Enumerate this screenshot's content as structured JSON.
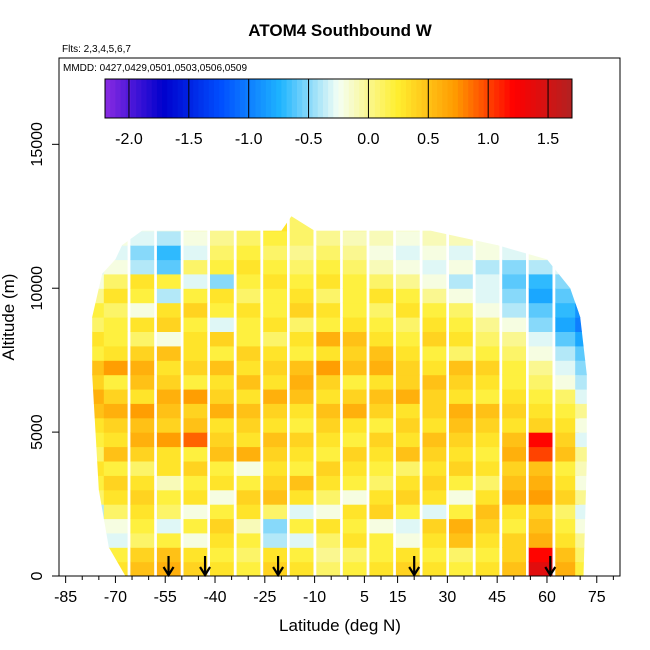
{
  "chart_data": {
    "type": "heatmap",
    "title": "ATOM4 Southbound W",
    "flights_note": "Flts: 2,3,4,5,6,7",
    "dates_note": "MMDD: 0427,0429,0501,0503,0506,0509",
    "xlabel": "Latitude (deg N)",
    "ylabel": "Altitude (m)",
    "xlim": [
      -87,
      82
    ],
    "ylim": [
      0,
      18000
    ],
    "x_ticks": [
      -85,
      -70,
      -55,
      -40,
      -25,
      -10,
      5,
      15,
      30,
      45,
      60,
      75
    ],
    "y_ticks": [
      0,
      5000,
      10000,
      15000
    ],
    "colorbar": {
      "range": [
        -2.2,
        1.7
      ],
      "ticks": [
        -2.0,
        -1.5,
        -1.0,
        -0.5,
        0.0,
        0.5,
        1.0,
        1.5
      ],
      "tick_labels": [
        "-2.0",
        "-1.5",
        "-1.0",
        "-0.5",
        "0.0",
        "0.5",
        "1.0",
        "1.5"
      ],
      "colors": [
        "#8a2be2",
        "#0000cd",
        "#0050ff",
        "#1eb4ff",
        "#f5fff5",
        "#ffef30",
        "#ff9a00",
        "#ff0000",
        "#b22222"
      ]
    },
    "profile_latitudes": [
      -54,
      -43,
      -21,
      20,
      61
    ],
    "envelope": {
      "lat": [
        -67,
        -72,
        -75,
        -76,
        -77,
        -77,
        -74,
        -70,
        -68,
        -62,
        -55,
        -35,
        -20,
        -17,
        -10,
        0,
        25,
        45,
        60,
        67,
        70,
        72,
        72,
        71
      ],
      "alt": [
        0,
        1000,
        3000,
        5000,
        7000,
        9000,
        10500,
        11000,
        11500,
        12000,
        12000,
        12000,
        12000,
        12500,
        12000,
        12000,
        12000,
        11500,
        11000,
        10000,
        9000,
        7000,
        4000,
        0
      ]
    },
    "w_field": {
      "lat": [
        -77,
        -70,
        -62,
        -54,
        -46,
        -38,
        -30,
        -22,
        -14,
        -6,
        2,
        10,
        18,
        26,
        34,
        42,
        50,
        58,
        66,
        72
      ],
      "alt": [
        250,
        750,
        1250,
        1750,
        2250,
        2750,
        3250,
        3750,
        4250,
        4750,
        5250,
        5750,
        6250,
        6750,
        7250,
        7750,
        8250,
        8750,
        9250,
        9750,
        10250,
        10750,
        11250,
        11750,
        12250
      ],
      "values": [
        [
          0.2,
          0.3,
          0.5,
          0.6,
          0.4,
          0.3,
          0.2,
          0.4,
          0.3,
          0.1,
          0.2,
          0.3,
          0.4,
          0.3,
          0.2,
          0.3,
          0.5,
          1.4,
          0.6,
          0.2
        ],
        [
          0.1,
          0.2,
          0.4,
          0.5,
          0.3,
          0.2,
          0.1,
          0.3,
          0.2,
          0.0,
          0.1,
          0.2,
          0.3,
          0.2,
          0.1,
          0.2,
          0.4,
          1.2,
          0.5,
          0.1
        ],
        [
          -0.2,
          -0.3,
          0.1,
          0.2,
          -0.2,
          0.3,
          0.2,
          -0.4,
          -0.3,
          0.1,
          0.3,
          0.2,
          -0.2,
          0.3,
          0.5,
          0.3,
          0.4,
          0.6,
          0.3,
          0.0
        ],
        [
          -0.3,
          -0.2,
          0.2,
          -0.3,
          0.2,
          0.4,
          -0.1,
          -0.5,
          0.2,
          0.3,
          0.2,
          -0.2,
          -0.3,
          0.4,
          0.6,
          0.4,
          0.2,
          0.5,
          0.2,
          -0.2
        ],
        [
          -0.4,
          0.1,
          0.3,
          0.1,
          -0.2,
          0.2,
          0.3,
          0.1,
          -0.3,
          -0.2,
          0.3,
          0.4,
          0.2,
          -0.3,
          0.2,
          0.5,
          0.3,
          0.4,
          0.1,
          -0.3
        ],
        [
          0.1,
          0.3,
          0.4,
          0.2,
          0.3,
          -0.2,
          0.4,
          0.5,
          0.3,
          0.1,
          -0.2,
          0.3,
          0.4,
          0.3,
          -0.2,
          0.3,
          0.6,
          0.7,
          0.4,
          0.0
        ],
        [
          0.2,
          0.4,
          0.3,
          -0.1,
          0.2,
          0.3,
          0.2,
          0.4,
          0.5,
          0.3,
          0.2,
          0.1,
          0.3,
          0.4,
          0.2,
          0.1,
          0.5,
          0.6,
          0.3,
          -0.2
        ],
        [
          0.3,
          0.2,
          0.1,
          0.3,
          0.4,
          0.2,
          -0.2,
          0.3,
          0.2,
          0.4,
          0.3,
          0.2,
          0.1,
          0.3,
          0.4,
          0.3,
          0.4,
          0.5,
          0.2,
          -0.1
        ],
        [
          0.1,
          0.5,
          0.4,
          0.3,
          0.2,
          0.5,
          0.6,
          0.4,
          0.3,
          0.2,
          0.4,
          0.3,
          0.5,
          0.4,
          0.3,
          0.2,
          0.6,
          1.0,
          0.5,
          0.0
        ],
        [
          0.2,
          0.3,
          0.6,
          0.7,
          0.9,
          0.4,
          0.3,
          0.5,
          0.4,
          0.3,
          0.2,
          0.4,
          0.3,
          0.5,
          0.4,
          0.3,
          0.5,
          1.2,
          0.4,
          -0.3
        ],
        [
          0.3,
          0.4,
          0.5,
          0.4,
          0.5,
          0.3,
          0.4,
          0.3,
          0.2,
          0.4,
          0.3,
          0.2,
          0.4,
          0.3,
          0.5,
          0.4,
          0.3,
          0.4,
          0.3,
          -0.2
        ],
        [
          0.5,
          0.6,
          0.7,
          0.5,
          0.4,
          0.6,
          0.5,
          0.4,
          0.3,
          0.5,
          0.6,
          0.4,
          0.3,
          0.4,
          0.6,
          0.5,
          0.4,
          0.3,
          0.2,
          0.0
        ],
        [
          0.6,
          0.4,
          0.3,
          0.6,
          0.7,
          0.4,
          0.3,
          0.6,
          0.5,
          0.3,
          0.4,
          0.5,
          0.6,
          0.4,
          0.3,
          0.2,
          0.3,
          0.2,
          0.1,
          -0.3
        ],
        [
          0.4,
          0.2,
          0.5,
          0.4,
          0.2,
          0.3,
          0.5,
          0.3,
          0.6,
          0.4,
          0.2,
          0.3,
          0.4,
          0.5,
          0.4,
          0.3,
          0.2,
          0.1,
          -0.2,
          -0.4
        ],
        [
          0.5,
          0.7,
          0.6,
          0.3,
          0.4,
          0.5,
          0.3,
          0.4,
          0.5,
          0.7,
          0.5,
          0.6,
          0.4,
          0.3,
          0.5,
          0.4,
          0.2,
          0.0,
          -0.3,
          -0.5
        ],
        [
          0.2,
          0.3,
          0.4,
          0.5,
          0.3,
          0.2,
          0.4,
          0.3,
          0.2,
          0.3,
          0.4,
          0.5,
          0.3,
          0.2,
          0.1,
          0.2,
          0.1,
          -0.2,
          -0.4,
          -0.6
        ],
        [
          0.3,
          0.2,
          0.1,
          -0.2,
          0.3,
          0.4,
          0.2,
          0.1,
          0.3,
          0.6,
          0.5,
          0.3,
          0.2,
          0.4,
          0.3,
          0.1,
          0.0,
          -0.3,
          -0.6,
          -0.8
        ],
        [
          0.1,
          0.2,
          0.3,
          0.4,
          0.2,
          -0.3,
          0.2,
          0.3,
          0.1,
          0.2,
          0.3,
          0.2,
          0.1,
          0.3,
          0.2,
          0.0,
          -0.2,
          -0.5,
          -0.8,
          -1.0
        ],
        [
          0.2,
          0.1,
          -0.2,
          0.3,
          0.4,
          0.2,
          0.3,
          0.2,
          0.4,
          0.3,
          0.2,
          0.1,
          0.3,
          0.2,
          0.1,
          -0.2,
          -0.4,
          -0.6,
          -0.7,
          -0.9
        ],
        [
          0.0,
          0.3,
          0.2,
          -0.4,
          0.2,
          0.3,
          0.1,
          0.2,
          0.3,
          0.1,
          0.2,
          0.3,
          0.2,
          0.0,
          -0.2,
          -0.3,
          -0.5,
          -0.8,
          -0.6,
          -0.5
        ],
        [
          -0.2,
          0.1,
          0.3,
          0.2,
          -0.3,
          -0.5,
          0.2,
          0.3,
          0.2,
          0.3,
          0.2,
          0.1,
          0.0,
          -0.2,
          -0.4,
          -0.3,
          -0.6,
          -0.7,
          -0.5,
          -0.4
        ],
        [
          -0.3,
          -0.2,
          -0.4,
          -0.6,
          0.1,
          0.2,
          0.3,
          0.2,
          0.1,
          0.2,
          0.1,
          -0.1,
          -0.2,
          -0.3,
          -0.2,
          -0.4,
          -0.5,
          -0.4,
          -0.3,
          -0.3
        ],
        [
          -0.2,
          -0.3,
          -0.5,
          -0.7,
          -0.3,
          0.1,
          0.2,
          0.1,
          0.0,
          0.1,
          0.0,
          -0.2,
          -0.3,
          -0.2,
          -0.3,
          -0.2,
          -0.3,
          -0.2,
          -0.2,
          -0.2
        ],
        [
          -0.1,
          -0.2,
          -0.3,
          -0.4,
          -0.2,
          0.0,
          0.1,
          0.2,
          0.1,
          0.0,
          -0.1,
          -0.1,
          -0.2,
          -0.1,
          -0.1,
          -0.2,
          -0.1,
          -0.1,
          -0.1,
          -0.1
        ],
        [
          -0.1,
          -0.1,
          -0.2,
          -0.2,
          -0.1,
          0.0,
          0.1,
          0.3,
          0.1,
          0.0,
          0.0,
          -0.1,
          -0.1,
          -0.1,
          0.0,
          -0.1,
          0.0,
          0.0,
          0.0,
          0.0
        ]
      ]
    }
  }
}
